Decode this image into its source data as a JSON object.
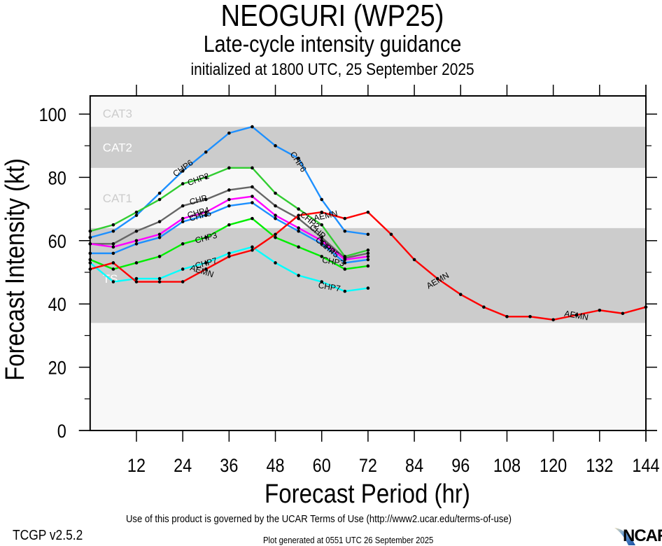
{
  "header": {
    "title": "NEOGURI (WP25)",
    "subtitle": "Late-cycle intensity guidance",
    "init_line": "initialized at 1800 UTC, 25 September 2025"
  },
  "footer": {
    "terms": "Use of this product is governed by the UCAR Terms of Use (http://www2.ucar.edu/terms-of-use)",
    "version": "TCGP v2.5.2",
    "generated": "Plot generated at 0551 UTC   26 September 2025",
    "logo_text": "NCAR"
  },
  "chart_data": {
    "type": "line",
    "title": "NEOGURI (WP25)",
    "xlabel": "Forecast Period (hr)",
    "ylabel": "Forecast Intensity (kt)",
    "xlim": [
      0,
      144
    ],
    "ylim": [
      0,
      105.75
    ],
    "xticks": [
      12,
      24,
      36,
      48,
      60,
      72,
      84,
      96,
      108,
      120,
      132,
      144
    ],
    "yticks": [
      0,
      20,
      40,
      60,
      80,
      100
    ],
    "yminor_ticks": [
      10,
      30,
      50,
      70,
      90
    ],
    "grid": false,
    "legend": "none (inline curve labels)",
    "intensity_bands": [
      {
        "label": "TS",
        "from": 34,
        "to": 64,
        "fill": "#cccccc",
        "label_color": "#ffffff"
      },
      {
        "label": "CAT1",
        "from": 64,
        "to": 83,
        "fill": "#f8f8f8",
        "label_color": "#cccccc"
      },
      {
        "label": "CAT2",
        "from": 83,
        "to": 96,
        "fill": "#cccccc",
        "label_color": "#ffffff"
      },
      {
        "label": "CAT3",
        "from": 96,
        "to": 105.75,
        "fill": "#f8f8f8",
        "label_color": "#cccccc"
      }
    ],
    "background_fill": "#f8f8f8",
    "series": [
      {
        "name": "CHP6",
        "color": "#1e90ff",
        "x": [
          0,
          6,
          12,
          18,
          24,
          30,
          36,
          42,
          48,
          54,
          60,
          66,
          72
        ],
        "values": [
          61,
          63,
          68,
          75,
          82,
          88,
          94,
          96,
          90,
          86,
          73,
          63,
          62
        ],
        "label_at": [
          [
            24,
            83,
            36
          ],
          [
            54,
            85,
            -57
          ]
        ]
      },
      {
        "name": "CHP2",
        "color": "#32cd32",
        "x": [
          0,
          6,
          12,
          18,
          24,
          30,
          36,
          42,
          48,
          54,
          60,
          66,
          72
        ],
        "values": [
          63,
          65,
          69,
          73,
          78,
          80,
          83,
          83,
          75,
          70,
          65,
          55,
          57
        ],
        "label_at": [
          [
            28,
            79.5,
            20
          ],
          [
            57,
            66.5,
            -40
          ]
        ]
      },
      {
        "name": "CHP",
        "color": "#666666",
        "x": [
          0,
          6,
          12,
          18,
          24,
          30,
          36,
          42,
          48,
          54,
          60,
          66,
          72
        ],
        "values": [
          59,
          59,
          63,
          66,
          71,
          73,
          76,
          77,
          71,
          67,
          61,
          54.5,
          56
        ],
        "label_at": [
          [
            28,
            73,
            15
          ],
          [
            59,
            63,
            -40
          ]
        ]
      },
      {
        "name": "CHP4",
        "color": "#ff00ff",
        "x": [
          0,
          6,
          12,
          18,
          24,
          30,
          36,
          42,
          48,
          54,
          60,
          66,
          72
        ],
        "values": [
          59,
          58,
          60,
          62,
          67,
          69,
          73,
          74,
          68,
          64,
          60,
          54,
          55
        ],
        "label_at": [
          [
            28,
            69,
            15
          ],
          [
            61,
            58.5,
            -40
          ]
        ]
      },
      {
        "name": "CHP5",
        "color": "#1e90ff",
        "x": [
          0,
          6,
          12,
          18,
          24,
          30,
          36,
          42,
          48,
          54,
          60,
          66,
          72
        ],
        "values": [
          56,
          56,
          59,
          61,
          66,
          68,
          71,
          72,
          67,
          63,
          59,
          53,
          54
        ],
        "label_at": [
          [
            28.5,
            68,
            15
          ],
          [
            62,
            57.5,
            -40
          ]
        ]
      },
      {
        "name": "CHP3",
        "color": "#00ee00",
        "x": [
          0,
          6,
          12,
          18,
          24,
          30,
          36,
          42,
          48,
          54,
          60,
          66,
          72
        ],
        "values": [
          54,
          51,
          53,
          55,
          59,
          61,
          65,
          67,
          61,
          58,
          55,
          51,
          52
        ],
        "label_at": [
          [
            30,
            61,
            15
          ],
          [
            63,
            53.5,
            -10
          ]
        ]
      },
      {
        "name": "CHP7",
        "color": "#00ffff",
        "x": [
          0,
          6,
          12,
          18,
          24,
          30,
          36,
          42,
          48,
          54,
          60,
          66,
          72
        ],
        "values": [
          53,
          47,
          48,
          48,
          51,
          53,
          56,
          58,
          53,
          49,
          47,
          44,
          45
        ],
        "label_at": [
          [
            30,
            53,
            15
          ],
          [
            62,
            45.5,
            -10
          ]
        ]
      },
      {
        "name": "AEMN",
        "color": "#ff0000",
        "x": [
          0,
          6,
          12,
          18,
          24,
          30,
          36,
          42,
          48,
          54,
          60,
          66,
          72,
          78,
          84,
          90,
          96,
          102,
          108,
          114,
          120,
          126,
          132,
          138,
          144
        ],
        "values": [
          51,
          53,
          47,
          47,
          47,
          51,
          55,
          57,
          62,
          68,
          69,
          67,
          69,
          62,
          54,
          48,
          43,
          39,
          36,
          36,
          35,
          36.5,
          38,
          37,
          39
        ],
        "label_at": [
          [
            29,
            50.5,
            -18
          ],
          [
            61,
            68,
            12
          ],
          [
            90,
            47.5,
            30
          ],
          [
            126,
            36.5,
            -10
          ]
        ]
      }
    ]
  }
}
